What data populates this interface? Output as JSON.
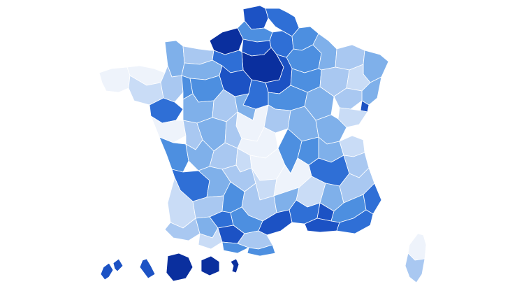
{
  "map": {
    "kind": "choropleth",
    "country": "France",
    "palette": {
      "very_light": "#eef3fb",
      "light": "#c9dcf6",
      "light_mid": "#a9c8f1",
      "mid": "#7fb0ea",
      "mid_dark": "#4d8fe0",
      "dark": "#2f6fd6",
      "darker": "#1c52c4",
      "darkest": "#0a2f9e"
    },
    "regions": [
      {
        "id": "pas-de-calais",
        "shade": "darker"
      },
      {
        "id": "nord",
        "shade": "dark"
      },
      {
        "id": "somme",
        "shade": "mid_dark"
      },
      {
        "id": "aisne",
        "shade": "dark"
      },
      {
        "id": "ardennes",
        "shade": "mid_dark"
      },
      {
        "id": "seine-maritime",
        "shade": "darkest"
      },
      {
        "id": "oise",
        "shade": "darker"
      },
      {
        "id": "marne",
        "shade": "mid_dark"
      },
      {
        "id": "meuse",
        "shade": "mid"
      },
      {
        "id": "moselle",
        "shade": "light_mid"
      },
      {
        "id": "bas-rhin",
        "shade": "mid"
      },
      {
        "id": "paris-region",
        "shade": "darkest"
      },
      {
        "id": "seine-et-marne",
        "shade": "darker"
      },
      {
        "id": "manche",
        "shade": "mid"
      },
      {
        "id": "calvados",
        "shade": "light_mid"
      },
      {
        "id": "orne",
        "shade": "mid"
      },
      {
        "id": "eure",
        "shade": "dark"
      },
      {
        "id": "eure-et-loir",
        "shade": "darker"
      },
      {
        "id": "aube",
        "shade": "mid_dark"
      },
      {
        "id": "haute-marne",
        "shade": "light_mid"
      },
      {
        "id": "vosges",
        "shade": "light"
      },
      {
        "id": "haut-rhin",
        "shade": "mid"
      },
      {
        "id": "finistere",
        "shade": "very_light"
      },
      {
        "id": "cotes-d-armor",
        "shade": "very_light"
      },
      {
        "id": "morbihan",
        "shade": "light"
      },
      {
        "id": "ille-et-vilaine",
        "shade": "light_mid"
      },
      {
        "id": "mayenne",
        "shade": "mid_dark"
      },
      {
        "id": "sarthe",
        "shade": "mid_dark"
      },
      {
        "id": "loiret",
        "shade": "dark"
      },
      {
        "id": "yonne",
        "shade": "mid_dark"
      },
      {
        "id": "cote-d-or",
        "shade": "mid"
      },
      {
        "id": "haute-saone",
        "shade": "light_mid"
      },
      {
        "id": "territoire-de-belfort",
        "shade": "darker"
      },
      {
        "id": "doubs",
        "shade": "light"
      },
      {
        "id": "loire-atlantique",
        "shade": "dark"
      },
      {
        "id": "maine-et-loire",
        "shade": "mid"
      },
      {
        "id": "indre-et-loire",
        "shade": "light_mid"
      },
      {
        "id": "loir-et-cher",
        "shade": "mid"
      },
      {
        "id": "cher",
        "shade": "very_light"
      },
      {
        "id": "nievre",
        "shade": "light_mid"
      },
      {
        "id": "saone-et-loire",
        "shade": "mid"
      },
      {
        "id": "jura",
        "shade": "mid"
      },
      {
        "id": "vendee",
        "shade": "very_light"
      },
      {
        "id": "deux-sevres",
        "shade": "light_mid"
      },
      {
        "id": "vienne",
        "shade": "mid"
      },
      {
        "id": "indre",
        "shade": "light_mid"
      },
      {
        "id": "allier",
        "shade": "very_light"
      },
      {
        "id": "ain",
        "shade": "mid"
      },
      {
        "id": "haute-savoie",
        "shade": "light"
      },
      {
        "id": "charente-maritime",
        "shade": "mid_dark"
      },
      {
        "id": "charente",
        "shade": "mid"
      },
      {
        "id": "haute-vienne",
        "shade": "light_mid"
      },
      {
        "id": "creuse",
        "shade": "light"
      },
      {
        "id": "puy-de-dome",
        "shade": "very_light"
      },
      {
        "id": "loire",
        "shade": "mid_dark"
      },
      {
        "id": "rhone",
        "shade": "mid_dark"
      },
      {
        "id": "isere",
        "shade": "dark"
      },
      {
        "id": "savoie",
        "shade": "light_mid"
      },
      {
        "id": "gironde",
        "shade": "dark"
      },
      {
        "id": "dordogne",
        "shade": "mid"
      },
      {
        "id": "correze",
        "shade": "light_mid"
      },
      {
        "id": "cantal",
        "shade": "light"
      },
      {
        "id": "haute-loire",
        "shade": "very_light"
      },
      {
        "id": "ardeche",
        "shade": "light"
      },
      {
        "id": "drome",
        "shade": "mid"
      },
      {
        "id": "hautes-alpes",
        "shade": "light_mid"
      },
      {
        "id": "landes",
        "shade": "light"
      },
      {
        "id": "lot-et-garonne",
        "shade": "light_mid"
      },
      {
        "id": "lot",
        "shade": "mid_dark"
      },
      {
        "id": "aveyron",
        "shade": "light_mid"
      },
      {
        "id": "lozere",
        "shade": "mid"
      },
      {
        "id": "gard",
        "shade": "dark"
      },
      {
        "id": "vaucluse",
        "shade": "darker"
      },
      {
        "id": "alpes-de-haute-provence",
        "shade": "mid_dark"
      },
      {
        "id": "alpes-maritimes",
        "shade": "dark"
      },
      {
        "id": "pyrenees-atlantiques",
        "shade": "light_mid"
      },
      {
        "id": "gers",
        "shade": "mid"
      },
      {
        "id": "tarn-et-garonne",
        "shade": "dark"
      },
      {
        "id": "tarn",
        "shade": "mid_dark"
      },
      {
        "id": "herault",
        "shade": "darker"
      },
      {
        "id": "bouches-du-rhone",
        "shade": "darker"
      },
      {
        "id": "var",
        "shade": "dark"
      },
      {
        "id": "hautes-pyrenees",
        "shade": "light"
      },
      {
        "id": "haute-garonne",
        "shade": "darker"
      },
      {
        "id": "ariege",
        "shade": "mid_dark"
      },
      {
        "id": "aude",
        "shade": "light_mid"
      },
      {
        "id": "pyrenees-orientales",
        "shade": "mid_dark"
      },
      {
        "id": "haute-corse",
        "shade": "very_light"
      },
      {
        "id": "corse-du-sud",
        "shade": "light_mid"
      },
      {
        "id": "guadeloupe",
        "shade": "darker"
      },
      {
        "id": "martinique",
        "shade": "darker"
      },
      {
        "id": "guyane",
        "shade": "darkest"
      },
      {
        "id": "la-reunion",
        "shade": "darkest"
      },
      {
        "id": "mayotte",
        "shade": "darkest"
      }
    ]
  }
}
